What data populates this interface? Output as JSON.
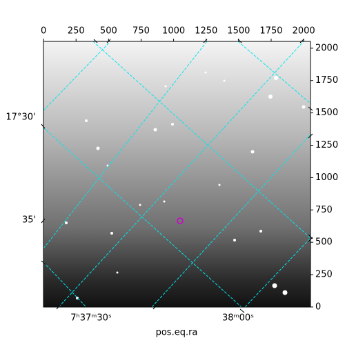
{
  "chart_data": {
    "type": "image",
    "xlabel": "pos.eq.ra",
    "xlim": [
      -0.5,
      2052.5
    ],
    "ylim": [
      -0.5,
      2052.5
    ],
    "xticks": [
      0,
      250,
      500,
      750,
      1000,
      1250,
      1500,
      1750,
      2000
    ],
    "yticks": [
      0,
      250,
      500,
      750,
      1000,
      1250,
      1500,
      1750,
      2000
    ],
    "ra_tick_labels": [
      "7ʰ37ᵐ30ˢ",
      "38ᵐ00ˢ"
    ],
    "dec_tick_labels": [
      "17°30'",
      "35'"
    ],
    "grid_color": "#00e5ee"
  }
}
